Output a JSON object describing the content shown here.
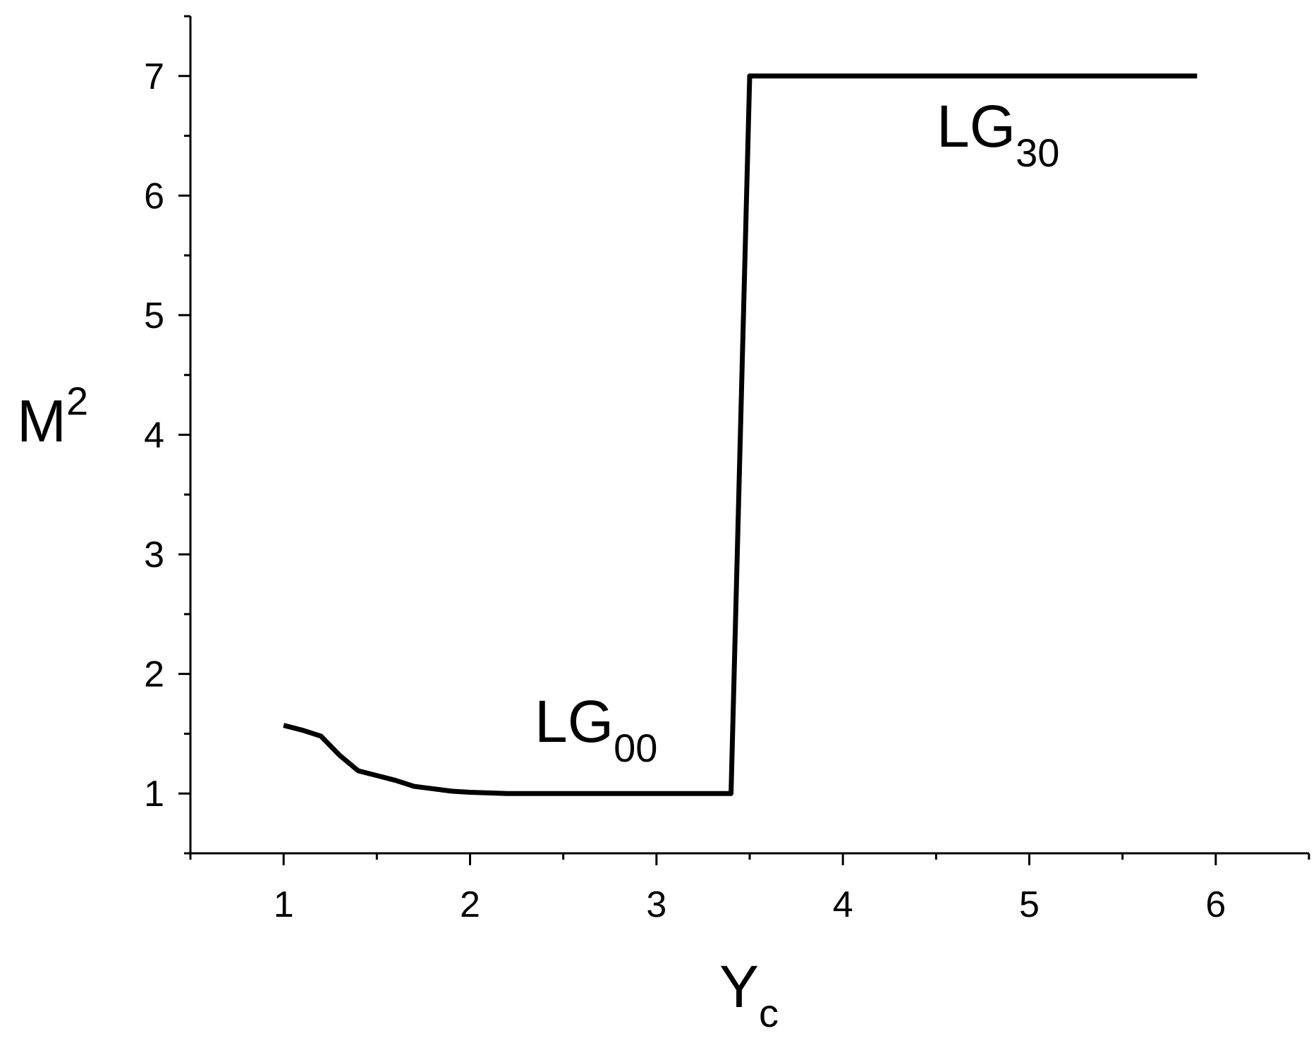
{
  "chart_data": {
    "type": "line",
    "ylabel": {
      "base": "M",
      "sup": "2"
    },
    "xlabel": {
      "base": "Y",
      "sub": "c"
    },
    "annotations": [
      {
        "base": "LG",
        "sub": "00"
      },
      {
        "base": "LG",
        "sub": "30"
      }
    ],
    "x": [
      1.0,
      1.1,
      1.2,
      1.3,
      1.4,
      1.5,
      1.6,
      1.7,
      1.8,
      1.9,
      2.0,
      2.2,
      2.4,
      2.6,
      2.8,
      3.0,
      3.2,
      3.4,
      3.5,
      4.0,
      4.5,
      5.0,
      5.5,
      5.9
    ],
    "series": [
      {
        "name": "M2",
        "color": "#000000",
        "values": [
          1.57,
          1.53,
          1.48,
          1.32,
          1.19,
          1.15,
          1.11,
          1.06,
          1.04,
          1.02,
          1.01,
          1.0,
          1.0,
          1.0,
          1.0,
          1.0,
          1.0,
          1.0,
          7,
          7,
          7,
          7,
          7,
          7
        ]
      }
    ],
    "xlim": [
      0.5,
      6.5
    ],
    "xticks": [
      1,
      2,
      3,
      4,
      5,
      6
    ],
    "xminor_ticks": [
      0.5,
      1.5,
      2.5,
      3.5,
      4.5,
      5.5,
      6.5
    ],
    "ylim": [
      0.5,
      7.5
    ],
    "yticks": [
      1,
      2,
      3,
      4,
      5,
      6,
      7
    ],
    "yminor_ticks": [
      0.5,
      1.5,
      2.5,
      3.5,
      4.5,
      5.5,
      6.5,
      7.5
    ],
    "grid": false
  }
}
